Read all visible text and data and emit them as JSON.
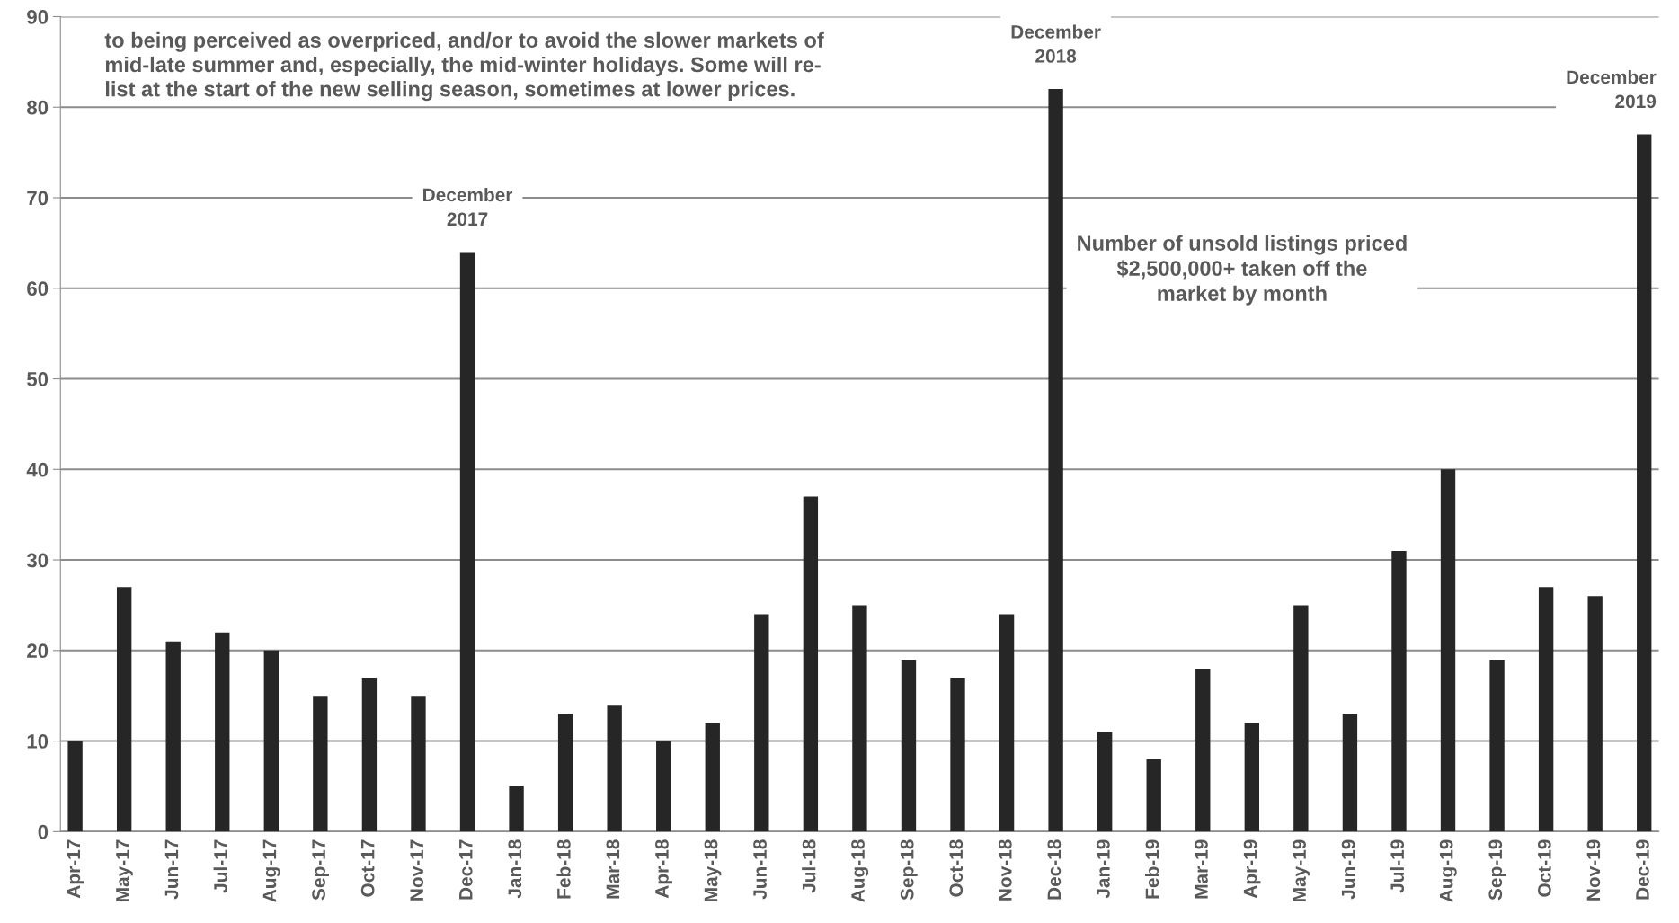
{
  "chart_data": {
    "type": "bar",
    "title": "Number of unsold listings priced\n$2,500,000+ taken off the\nmarket by month",
    "categories": [
      "Apr-17",
      "May-17",
      "Jun-17",
      "Jul-17",
      "Aug-17",
      "Sep-17",
      "Oct-17",
      "Nov-17",
      "Dec-17",
      "Jan-18",
      "Feb-18",
      "Mar-18",
      "Apr-18",
      "May-18",
      "Jun-18",
      "Jul-18",
      "Aug-18",
      "Sep-18",
      "Oct-18",
      "Nov-18",
      "Dec-18",
      "Jan-19",
      "Feb-19",
      "Mar-19",
      "Apr-19",
      "May-19",
      "Jun-19",
      "Jul-19",
      "Aug-19",
      "Sep-19",
      "Oct-19",
      "Nov-19",
      "Dec-19"
    ],
    "values": [
      10,
      27,
      21,
      22,
      20,
      15,
      17,
      15,
      64,
      5,
      13,
      14,
      10,
      12,
      24,
      37,
      25,
      19,
      17,
      24,
      82,
      11,
      8,
      18,
      12,
      25,
      13,
      31,
      40,
      19,
      27,
      26,
      77
    ],
    "color": "#262626",
    "ylim": [
      0,
      90
    ],
    "yticks": [
      0,
      10,
      20,
      30,
      40,
      50,
      60,
      70,
      80,
      90
    ],
    "grid": "y",
    "annotations": [
      "to being perceived as overpriced, and/or to avoid the slower markets of\nmid-late summer and, especially, the mid-winter holidays. Some will re-\nlist at the start of the new selling season, sometimes at lower prices.",
      {
        "text": "December\n2017",
        "x": "Dec-17",
        "y": 64
      },
      {
        "text": "December\n2018",
        "x": "Dec-18",
        "y": 82
      },
      {
        "text": "December\n2019",
        "x": "Dec-19",
        "y": 77
      }
    ]
  }
}
